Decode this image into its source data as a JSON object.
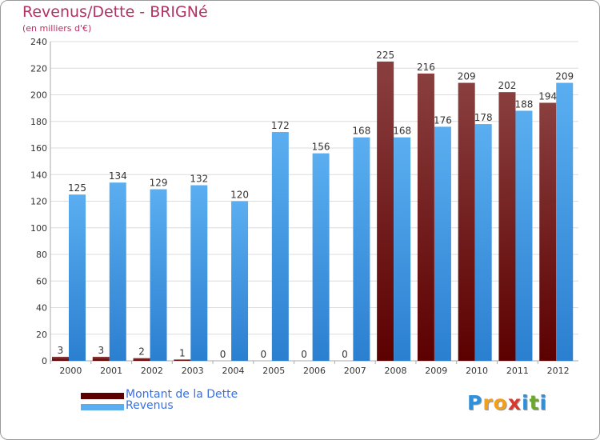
{
  "title": "Revenus/Dette - BRIGNé",
  "subtitle": "(en milliers d'€)",
  "logo": {
    "letters": [
      "P",
      "r",
      "o",
      "x",
      "i",
      "t",
      "i"
    ],
    "colors": [
      "#2f8fd8",
      "#f2a01c",
      "#f2a01c",
      "#d8382e",
      "#2f8fd8",
      "#6aaa2a",
      "#2f8fd8"
    ]
  },
  "colors": {
    "dette_dark": "#5c0000",
    "dette_light": "#8a3f3f",
    "revenus_dark": "#2b7fd0",
    "revenus_light": "#5aaef0",
    "grid": "#dcdcdc",
    "axis_text": "#333333"
  },
  "chart_data": {
    "type": "bar",
    "title": "Revenus/Dette - BRIGNé",
    "ylabel": "(en milliers d'€)",
    "xlabel": "",
    "ylim": [
      0,
      240
    ],
    "yticks": [
      0,
      20,
      40,
      60,
      80,
      100,
      120,
      140,
      160,
      180,
      200,
      220,
      240
    ],
    "categories": [
      "2000",
      "2001",
      "2002",
      "2003",
      "2004",
      "2005",
      "2006",
      "2007",
      "2008",
      "2009",
      "2010",
      "2011",
      "2012"
    ],
    "series": [
      {
        "name": "Montant de la Dette",
        "values": [
          3,
          3,
          2,
          1,
          0,
          0,
          0,
          0,
          225,
          216,
          209,
          202,
          194
        ]
      },
      {
        "name": "Revenus",
        "values": [
          125,
          134,
          129,
          132,
          120,
          172,
          156,
          168,
          168,
          176,
          178,
          188,
          209
        ]
      }
    ],
    "legend_position": "bottom-left",
    "grid": true
  }
}
